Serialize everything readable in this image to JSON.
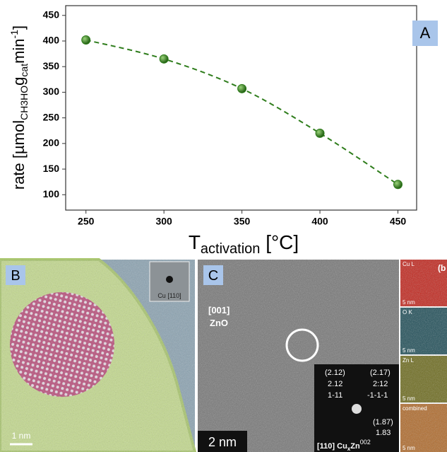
{
  "chart_data": {
    "type": "scatter",
    "y_label": [
      "rate [µmol",
      "CH3HO",
      "g",
      "cat",
      "min",
      "-1",
      "]"
    ],
    "x_label": [
      "T",
      "activation",
      " [°C]"
    ],
    "x": [
      250,
      300,
      350,
      400,
      450
    ],
    "values": [
      402,
      365,
      307,
      220,
      120
    ],
    "color": "#2f7d1c",
    "line_style": "dashed",
    "xlim": [
      237,
      462
    ],
    "xticks": [
      250,
      300,
      350,
      400,
      450
    ],
    "ylim": [
      70,
      469
    ],
    "yticks": [
      100,
      150,
      200,
      250,
      300,
      350,
      400,
      450
    ],
    "panel_label": "A"
  },
  "panel_b": {
    "label": "B",
    "inset": "Cu [110]",
    "scale": "1 nm"
  },
  "panel_c": {
    "label": "C",
    "direction": "[001]",
    "phase": "ZnO",
    "spots": [
      "(2.12)",
      "2.12",
      "1-11",
      "(2.17)",
      "2:12",
      "-1-1-1",
      "(1.87)",
      "1.83"
    ],
    "zone": [
      "[110] Cu",
      "x",
      "Zn",
      "002"
    ],
    "scale": "2 nm"
  },
  "maps": {
    "corner": "(b",
    "tiles": [
      "Cu L",
      "O K",
      "Zn L",
      "combined"
    ],
    "scale": "5 nm"
  }
}
